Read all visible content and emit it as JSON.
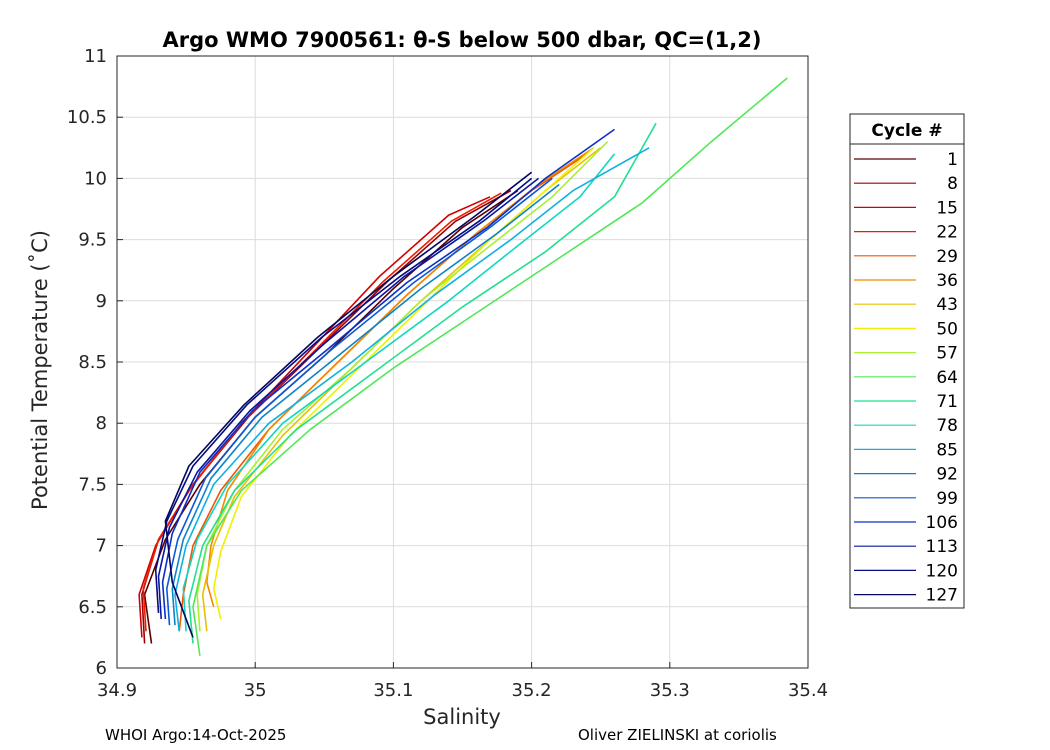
{
  "chart_data": {
    "type": "line",
    "title": "Argo WMO 7900561: θ-S below 500 dbar,  QC=(1,2)",
    "xlabel": "Salinity",
    "ylabel": "Potential Temperature (˚C)",
    "xlim": [
      34.9,
      35.4
    ],
    "ylim": [
      6,
      11
    ],
    "xticks": [
      "34.9",
      "35",
      "35.1",
      "35.2",
      "35.3",
      "35.4"
    ],
    "yticks": [
      "6",
      "6.5",
      "7",
      "7.5",
      "8",
      "8.5",
      "9",
      "9.5",
      "10",
      "10.5",
      "11"
    ],
    "grid": true,
    "legend": {
      "title": "Cycle #",
      "placement": "right",
      "entries": [
        {
          "label": "1",
          "color": "#5a0000"
        },
        {
          "label": "8",
          "color": "#9c0000"
        },
        {
          "label": "15",
          "color": "#d20000"
        },
        {
          "label": "22",
          "color": "#f01c00"
        },
        {
          "label": "29",
          "color": "#f25500"
        },
        {
          "label": "36",
          "color": "#f08a00"
        },
        {
          "label": "43",
          "color": "#e8c000"
        },
        {
          "label": "50",
          "color": "#f0f000"
        },
        {
          "label": "57",
          "color": "#a8f030"
        },
        {
          "label": "64",
          "color": "#50e858"
        },
        {
          "label": "71",
          "color": "#20e090"
        },
        {
          "label": "78",
          "color": "#10d8c0"
        },
        {
          "label": "85",
          "color": "#10b0e0"
        },
        {
          "label": "92",
          "color": "#0c84c8"
        },
        {
          "label": "99",
          "color": "#0a58d8"
        },
        {
          "label": "106",
          "color": "#0a30c8"
        },
        {
          "label": "113",
          "color": "#0818a0"
        },
        {
          "label": "120",
          "color": "#060c80"
        },
        {
          "label": "127",
          "color": "#040660"
        }
      ]
    },
    "series": [
      {
        "color": "#5a0000",
        "x": [
          34.925,
          34.92,
          34.935,
          34.96,
          35.0,
          35.05,
          35.1,
          35.15,
          35.19
        ],
        "y": [
          6.2,
          6.6,
          7.05,
          7.5,
          8.05,
          8.55,
          9.1,
          9.6,
          9.9
        ]
      },
      {
        "color": "#9c0000",
        "x": [
          34.92,
          34.918,
          34.93,
          34.955,
          34.995,
          35.045,
          35.095,
          35.145,
          35.185
        ],
        "y": [
          6.2,
          6.6,
          7.05,
          7.5,
          8.05,
          8.6,
          9.15,
          9.65,
          9.9
        ]
      },
      {
        "color": "#d20000",
        "x": [
          34.918,
          34.916,
          34.928,
          34.952,
          34.99,
          35.04,
          35.09,
          35.14,
          35.17
        ],
        "y": [
          6.25,
          6.6,
          7.0,
          7.45,
          8.0,
          8.6,
          9.2,
          9.7,
          9.85
        ]
      },
      {
        "color": "#f01c00",
        "x": [
          34.921,
          34.919,
          34.93,
          34.955,
          34.992,
          35.042,
          35.092,
          35.142,
          35.178
        ],
        "y": [
          6.3,
          6.65,
          7.05,
          7.5,
          8.02,
          8.58,
          9.15,
          9.65,
          9.88
        ]
      },
      {
        "color": "#f25500",
        "x": [
          34.945,
          34.948,
          34.955,
          34.975,
          35.01,
          35.06,
          35.11,
          35.16,
          35.2,
          35.24
        ],
        "y": [
          6.3,
          6.6,
          7.0,
          7.45,
          7.95,
          8.5,
          9.05,
          9.55,
          9.9,
          10.2
        ]
      },
      {
        "color": "#f08a00",
        "x": [
          34.97,
          34.965,
          34.968,
          34.98,
          35.01,
          35.06,
          35.11,
          35.16,
          35.205,
          35.245
        ],
        "y": [
          6.5,
          6.7,
          7.0,
          7.45,
          7.95,
          8.5,
          9.05,
          9.55,
          9.95,
          10.25
        ]
      },
      {
        "color": "#e8c000",
        "x": [
          34.965,
          34.962,
          34.97,
          34.985,
          35.02,
          35.07,
          35.12,
          35.17,
          35.21,
          35.25
        ],
        "y": [
          6.3,
          6.6,
          7.0,
          7.4,
          7.9,
          8.45,
          9.0,
          9.5,
          9.9,
          10.25
        ]
      },
      {
        "color": "#f0f000",
        "x": [
          34.975,
          34.97,
          34.975,
          34.99,
          35.025,
          35.075,
          35.125,
          35.17,
          35.21,
          35.245
        ],
        "y": [
          6.4,
          6.65,
          6.95,
          7.4,
          7.9,
          8.45,
          9.0,
          9.5,
          9.9,
          10.25
        ]
      },
      {
        "color": "#a8f030",
        "x": [
          34.96,
          34.958,
          34.965,
          34.985,
          35.02,
          35.07,
          35.12,
          35.17,
          35.215,
          35.255
        ],
        "y": [
          6.3,
          6.6,
          7.0,
          7.45,
          7.95,
          8.45,
          9.0,
          9.45,
          9.85,
          10.3
        ]
      },
      {
        "color": "#50e858",
        "x": [
          34.96,
          34.955,
          34.965,
          34.99,
          35.04,
          35.1,
          35.16,
          35.22,
          35.28,
          35.33,
          35.385
        ],
        "y": [
          6.1,
          6.5,
          7.0,
          7.45,
          7.95,
          8.45,
          8.9,
          9.35,
          9.8,
          10.3,
          10.82
        ]
      },
      {
        "color": "#20e090",
        "x": [
          34.955,
          34.952,
          34.962,
          34.985,
          35.03,
          35.09,
          35.15,
          35.21,
          35.26,
          35.29
        ],
        "y": [
          6.2,
          6.55,
          7.0,
          7.45,
          7.95,
          8.45,
          8.95,
          9.4,
          9.85,
          10.45
        ]
      },
      {
        "color": "#10d8c0",
        "x": [
          34.95,
          34.948,
          34.958,
          34.98,
          35.02,
          35.08,
          35.14,
          35.19,
          35.235,
          35.26
        ],
        "y": [
          6.3,
          6.65,
          7.05,
          7.5,
          8.0,
          8.5,
          9.0,
          9.45,
          9.85,
          10.2
        ]
      },
      {
        "color": "#10b0e0",
        "x": [
          34.945,
          34.942,
          34.95,
          34.97,
          35.01,
          35.07,
          35.13,
          35.185,
          35.23,
          35.285
        ],
        "y": [
          6.3,
          6.6,
          7.0,
          7.5,
          8.0,
          8.5,
          9.05,
          9.5,
          9.9,
          10.25
        ]
      },
      {
        "color": "#0c84c8",
        "x": [
          34.942,
          34.94,
          34.948,
          34.968,
          35.005,
          35.06,
          35.12,
          35.175,
          35.22
        ],
        "y": [
          6.35,
          6.65,
          7.05,
          7.55,
          8.05,
          8.55,
          9.1,
          9.55,
          9.95
        ]
      },
      {
        "color": "#0a58d8",
        "x": [
          34.938,
          34.936,
          34.944,
          34.964,
          35.0,
          35.055,
          35.115,
          35.17,
          35.215
        ],
        "y": [
          6.35,
          6.65,
          7.05,
          7.55,
          8.05,
          8.6,
          9.15,
          9.6,
          10.0
        ]
      },
      {
        "color": "#0a30c8",
        "x": [
          34.935,
          34.933,
          34.94,
          34.96,
          34.998,
          35.052,
          35.11,
          35.168,
          35.21,
          35.26
        ],
        "y": [
          6.4,
          6.7,
          7.1,
          7.6,
          8.1,
          8.6,
          9.15,
          9.6,
          10.0,
          10.4
        ]
      },
      {
        "color": "#0818a0",
        "x": [
          34.932,
          34.93,
          34.938,
          34.958,
          34.996,
          35.05,
          35.108,
          35.165,
          35.205
        ],
        "y": [
          6.4,
          6.75,
          7.15,
          7.6,
          8.1,
          8.65,
          9.2,
          9.65,
          10.0
        ]
      },
      {
        "color": "#060c80",
        "x": [
          34.93,
          34.928,
          34.936,
          34.955,
          34.994,
          35.048,
          35.105,
          35.162,
          35.2
        ],
        "y": [
          6.45,
          6.8,
          7.2,
          7.65,
          8.15,
          8.7,
          9.2,
          9.65,
          10.0
        ]
      },
      {
        "color": "#040660",
        "x": [
          34.955,
          34.94,
          34.935,
          34.952,
          34.992,
          35.045,
          35.1,
          35.16,
          35.2
        ],
        "y": [
          6.25,
          6.7,
          7.2,
          7.65,
          8.15,
          8.7,
          9.2,
          9.7,
          10.05
        ]
      }
    ]
  },
  "footer": {
    "left": "WHOI Argo:14-Oct-2025",
    "right": "Oliver ZIELINSKI at coriolis"
  }
}
